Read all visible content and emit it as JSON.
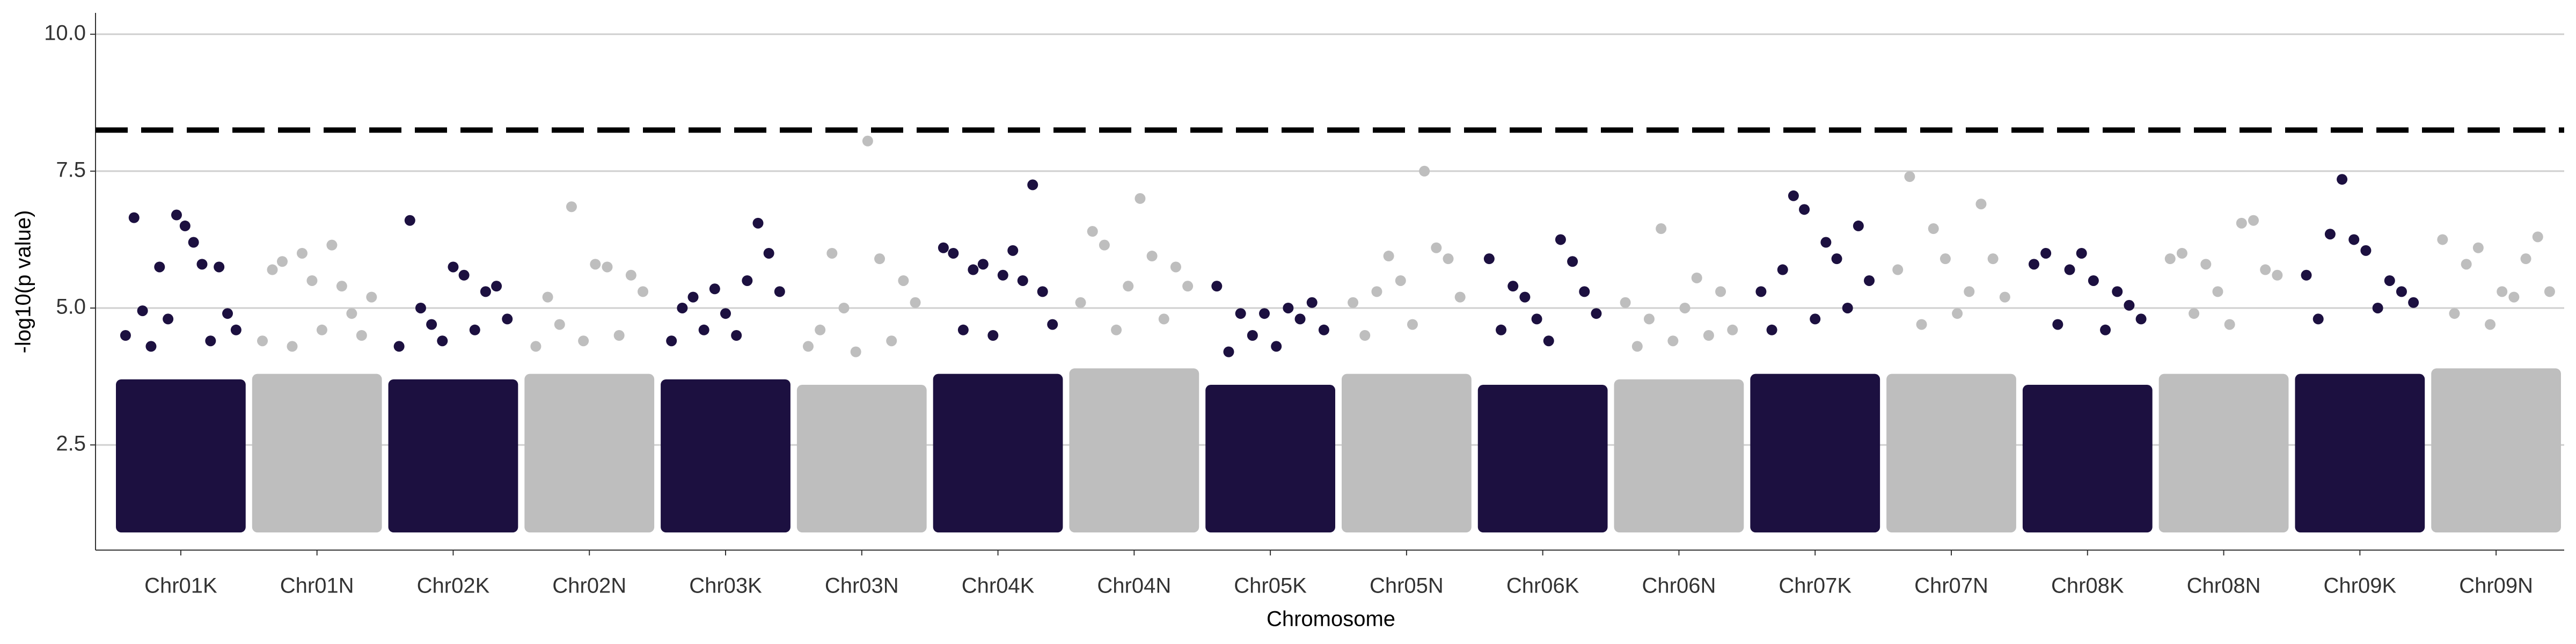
{
  "chart_data": {
    "type": "scatter",
    "x_label": "Chromosome",
    "y_label": "-log10(p value)",
    "ylim": [
      0.58,
      10.39
    ],
    "yticks": [
      2.5,
      {
        "value": 5,
        "label": "5.0"
      },
      7.5,
      {
        "value": 10,
        "label": "10.0"
      }
    ],
    "grid": true,
    "threshold": 8.25,
    "categories": [
      "Chr01K",
      "Chr01N",
      "Chr02K",
      "Chr02N",
      "Chr03K",
      "Chr03N",
      "Chr04K",
      "Chr04N",
      "Chr05K",
      "Chr05N",
      "Chr06K",
      "Chr06N",
      "Chr07K",
      "Chr07N",
      "Chr08K",
      "Chr08N",
      "Chr09K",
      "Chr09N"
    ],
    "colors": [
      "#1c1040",
      "#bebebe",
      "#1c1040",
      "#bebebe",
      "#1c1040",
      "#bebebe",
      "#1c1040",
      "#bebebe",
      "#1c1040",
      "#bebebe",
      "#1c1040",
      "#bebebe",
      "#1c1040",
      "#bebebe",
      "#1c1040",
      "#bebebe",
      "#1c1040",
      "#bebebe"
    ],
    "dense_range": [
      [
        1.0,
        3.6
      ],
      [
        1.0,
        3.7
      ],
      [
        1.0,
        3.6
      ],
      [
        1.0,
        3.7
      ],
      [
        1.0,
        3.6
      ],
      [
        1.0,
        3.5
      ],
      [
        1.0,
        3.7
      ],
      [
        1.0,
        3.8
      ],
      [
        1.0,
        3.5
      ],
      [
        1.0,
        3.7
      ],
      [
        1.0,
        3.5
      ],
      [
        1.0,
        3.6
      ],
      [
        1.0,
        3.7
      ],
      [
        1.0,
        3.7
      ],
      [
        1.0,
        3.5
      ],
      [
        1.0,
        3.7
      ],
      [
        1.0,
        3.7
      ],
      [
        1.0,
        3.8
      ]
    ],
    "values": [
      [
        4.5,
        6.65,
        4.95,
        4.3,
        5.75,
        4.8,
        6.7,
        6.5,
        6.2,
        5.8,
        4.4,
        5.75,
        4.9,
        4.6
      ],
      [
        4.4,
        5.7,
        5.85,
        4.3,
        6.0,
        5.5,
        4.6,
        6.15,
        5.4,
        4.9,
        4.5,
        5.2
      ],
      [
        4.3,
        6.6,
        5.0,
        4.7,
        4.4,
        5.75,
        5.6,
        4.6,
        5.3,
        5.4,
        4.8
      ],
      [
        4.3,
        5.2,
        4.7,
        6.85,
        4.4,
        5.8,
        5.75,
        4.5,
        5.6,
        5.3
      ],
      [
        4.4,
        5.0,
        5.2,
        4.6,
        5.35,
        4.9,
        4.5,
        5.5,
        6.55,
        6.0,
        5.3
      ],
      [
        4.3,
        4.6,
        6.0,
        5.0,
        4.2,
        8.05,
        5.9,
        4.4,
        5.5,
        5.1
      ],
      [
        6.1,
        6.0,
        4.6,
        5.7,
        5.8,
        4.5,
        5.6,
        6.05,
        5.5,
        7.25,
        5.3,
        4.7
      ],
      [
        5.1,
        6.4,
        6.15,
        4.6,
        5.4,
        7.0,
        5.95,
        4.8,
        5.75,
        5.4
      ],
      [
        5.4,
        4.2,
        4.9,
        4.5,
        4.9,
        4.3,
        5.0,
        4.8,
        5.1,
        4.6
      ],
      [
        5.1,
        4.5,
        5.3,
        5.95,
        5.5,
        4.7,
        7.5,
        6.1,
        5.9,
        5.2
      ],
      [
        5.9,
        4.6,
        5.4,
        5.2,
        4.8,
        4.4,
        6.25,
        5.85,
        5.3,
        4.9
      ],
      [
        5.1,
        4.3,
        4.8,
        6.45,
        4.4,
        5.0,
        5.55,
        4.5,
        5.3,
        4.6
      ],
      [
        5.3,
        4.6,
        5.7,
        7.05,
        6.8,
        4.8,
        6.2,
        5.9,
        5.0,
        6.5,
        5.5
      ],
      [
        5.7,
        7.4,
        4.7,
        6.45,
        5.9,
        4.9,
        5.3,
        6.9,
        5.9,
        5.2
      ],
      [
        5.8,
        6.0,
        4.7,
        5.7,
        6.0,
        5.5,
        4.6,
        5.3,
        5.05,
        4.8
      ],
      [
        5.9,
        6.0,
        4.9,
        5.8,
        5.3,
        4.7,
        6.55,
        6.6,
        5.7,
        5.6
      ],
      [
        5.6,
        4.8,
        6.35,
        7.35,
        6.25,
        6.05,
        5.0,
        5.5,
        5.3,
        5.1
      ],
      [
        6.25,
        4.9,
        5.8,
        6.1,
        4.7,
        5.3,
        5.2,
        5.9,
        6.3,
        5.3
      ]
    ]
  }
}
